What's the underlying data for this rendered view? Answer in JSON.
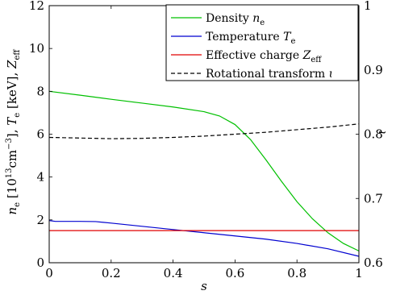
{
  "chart_data": {
    "type": "line",
    "xlabel": "s",
    "ylabel_left": "n_e [10^13 cm^-3], T_e [keV], Z_eff",
    "ylabel_right": "ɩ",
    "xlim": [
      0,
      1
    ],
    "ylim_left": [
      0,
      12
    ],
    "ylim_right": [
      0.6,
      1.0
    ],
    "xticks": [
      "0",
      "0.2",
      "0.4",
      "0.6",
      "0.8",
      "1"
    ],
    "yticks_left": [
      "0",
      "2",
      "4",
      "6",
      "8",
      "10",
      "12"
    ],
    "yticks_right": [
      "0.6",
      "0.7",
      "0.8",
      "0.9",
      "1"
    ],
    "grid": false,
    "legend_position": "top-right",
    "series": [
      {
        "name": "Density n_e",
        "axis": "left",
        "color": "#00c000",
        "dash": "solid",
        "x": [
          0,
          0.1,
          0.2,
          0.3,
          0.4,
          0.5,
          0.55,
          0.6,
          0.65,
          0.7,
          0.75,
          0.8,
          0.85,
          0.9,
          0.95,
          1.0
        ],
        "y": [
          8.0,
          7.82,
          7.63,
          7.45,
          7.27,
          7.05,
          6.85,
          6.45,
          5.75,
          4.8,
          3.8,
          2.85,
          2.05,
          1.4,
          0.9,
          0.55
        ]
      },
      {
        "name": "Temperature T_e",
        "axis": "left",
        "color": "#0000d0",
        "dash": "solid",
        "x": [
          0,
          0.02,
          0.1,
          0.15,
          0.2,
          0.3,
          0.4,
          0.5,
          0.6,
          0.7,
          0.8,
          0.9,
          1.0
        ],
        "y": [
          1.97,
          1.93,
          1.93,
          1.92,
          1.85,
          1.7,
          1.55,
          1.4,
          1.25,
          1.1,
          0.9,
          0.65,
          0.3
        ]
      },
      {
        "name": "Effective charge Z_eff",
        "axis": "left",
        "color": "#e00000",
        "dash": "solid",
        "x": [
          0,
          1.0
        ],
        "y": [
          1.5,
          1.5
        ]
      },
      {
        "name": "Rotational transform ɩ",
        "axis": "right",
        "color": "#000000",
        "dash": "dashed",
        "x": [
          0,
          0.1,
          0.2,
          0.3,
          0.4,
          0.5,
          0.6,
          0.7,
          0.8,
          0.9,
          1.0
        ],
        "y": [
          0.795,
          0.794,
          0.793,
          0.7935,
          0.795,
          0.797,
          0.8,
          0.803,
          0.807,
          0.811,
          0.816
        ]
      }
    ]
  }
}
